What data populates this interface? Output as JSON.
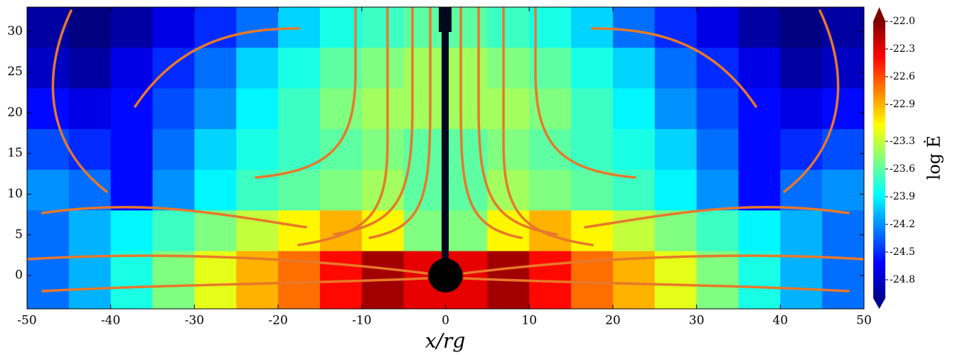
{
  "chart_data": {
    "type": "contour",
    "xlabel": "x/rg",
    "colorbar_label": "log Ė",
    "xlim": [
      -50,
      50
    ],
    "ylim": [
      -4.1,
      33
    ],
    "xticks": [
      -50,
      -40,
      -30,
      -20,
      -10,
      0,
      10,
      20,
      30,
      40,
      50
    ],
    "yticks": [
      0,
      5,
      10,
      15,
      20,
      25,
      30
    ],
    "clim": [
      -25.0,
      -22.0
    ],
    "cticks": [
      {
        "value": -22.0,
        "label": "-22.0"
      },
      -22.3,
      -22.6,
      -22.9,
      -23.3,
      -23.6,
      -23.9,
      -24.2,
      -24.5,
      -24.8
    ],
    "colormap": "jet",
    "xbins": [
      -50,
      -45,
      -40,
      -35,
      -30,
      -25,
      -20,
      -15,
      -10,
      -5,
      0,
      5,
      10,
      15,
      20,
      25,
      30,
      35,
      40,
      45,
      50
    ],
    "ybins": [
      33,
      28,
      23,
      18,
      13,
      8,
      3,
      -4.1
    ],
    "z": [
      [
        -24.9,
        -25.0,
        -24.9,
        -24.7,
        -24.5,
        -24.3,
        -24.0,
        -23.8,
        -23.7,
        -23.6,
        -23.6,
        -23.7,
        -23.8,
        -24.0,
        -24.3,
        -24.5,
        -24.7,
        -24.9,
        -25.0,
        -24.9
      ],
      [
        -24.8,
        -24.9,
        -24.7,
        -24.5,
        -24.3,
        -24.0,
        -23.8,
        -23.6,
        -23.5,
        -23.4,
        -23.4,
        -23.5,
        -23.6,
        -23.8,
        -24.0,
        -24.3,
        -24.5,
        -24.7,
        -24.9,
        -24.8
      ],
      [
        -24.6,
        -24.7,
        -24.6,
        -24.4,
        -24.2,
        -23.9,
        -23.7,
        -23.5,
        -23.4,
        -23.4,
        -23.4,
        -23.4,
        -23.5,
        -23.7,
        -23.9,
        -24.2,
        -24.4,
        -24.6,
        -24.7,
        -24.6
      ],
      [
        -24.4,
        -24.5,
        -24.6,
        -24.3,
        -24.0,
        -23.8,
        -23.7,
        -23.6,
        -23.5,
        -23.6,
        -23.6,
        -23.5,
        -23.6,
        -23.7,
        -23.8,
        -24.0,
        -24.3,
        -24.6,
        -24.5,
        -24.4
      ],
      [
        -24.2,
        -24.3,
        -24.6,
        -24.2,
        -23.9,
        -23.7,
        -23.6,
        -23.5,
        -23.4,
        -23.6,
        -23.6,
        -23.4,
        -23.5,
        -23.6,
        -23.7,
        -23.9,
        -24.2,
        -24.6,
        -24.3,
        -24.2
      ],
      [
        -24.3,
        -24.1,
        -23.9,
        -23.7,
        -23.5,
        -23.3,
        -23.1,
        -22.9,
        -23.1,
        -23.5,
        -23.5,
        -23.1,
        -22.9,
        -23.1,
        -23.3,
        -23.5,
        -23.7,
        -23.9,
        -24.1,
        -24.3
      ],
      [
        -24.3,
        -24.1,
        -23.8,
        -23.5,
        -23.2,
        -22.9,
        -22.7,
        -22.4,
        -22.1,
        -22.3,
        -22.3,
        -22.1,
        -22.4,
        -22.7,
        -22.9,
        -23.2,
        -23.5,
        -23.8,
        -24.1,
        -24.3
      ]
    ]
  }
}
